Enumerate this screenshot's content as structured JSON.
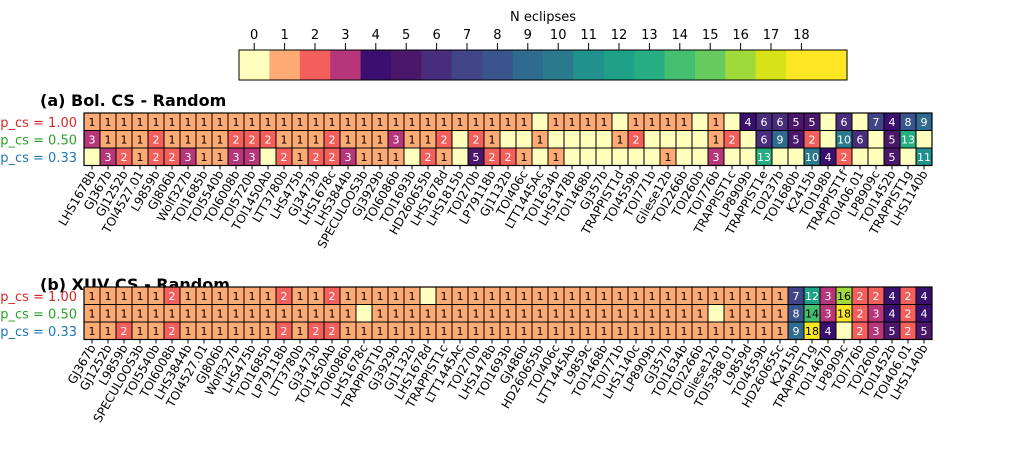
{
  "chart_data": {
    "type": "heatmap",
    "colorbar": {
      "label": "N eclipses",
      "ticks": [
        "0",
        "1",
        "2",
        "3",
        "4",
        "5",
        "6",
        "7",
        "8",
        "9",
        "10",
        "11",
        "12",
        "13",
        "14",
        "15",
        "16",
        "17",
        "18"
      ],
      "colors": [
        "#fefebd",
        "#fdaa75",
        "#f35f5b",
        "#b63679",
        "#3b0f70",
        "#4b176b",
        "#472d7b",
        "#414587",
        "#3a548c",
        "#2f6b8e",
        "#2a7a8e",
        "#21918c",
        "#1fa188",
        "#26ad81",
        "#44bf70",
        "#65cb5e",
        "#9fda3a",
        "#d8e219",
        "#fde725",
        "#fde725"
      ]
    },
    "row_labels": [
      "p_cs = 1.00",
      "p_cs = 0.50",
      "p_cs = 0.33"
    ],
    "row_label_colors": [
      "#d62728",
      "#2ca02c",
      "#1f77b4"
    ],
    "panels": [
      {
        "title": "(a) Bol. CS - Random",
        "columns": [
          "LHS1678b",
          "GJ367b",
          "GJ1252b",
          "TOI4527.01",
          "L9859b",
          "GJ806b",
          "Wolf327b",
          "TOI1685b",
          "TOI5540b",
          "TOI6008b",
          "TOI5720b",
          "TOI1450Ab",
          "LTT3780b",
          "LHS475b",
          "GJ3473b",
          "LHS1678c",
          "LHS3844b",
          "SPECULOOS3b",
          "GJ3929b",
          "TOI6086b",
          "TOI1693b",
          "HD260655b",
          "LHS1678d",
          "LHS1815b",
          "TOI270b",
          "LP79118b",
          "GJ1132b",
          "TOI406c",
          "LTT1445Ac",
          "TOI1634b",
          "LHS1478b",
          "TOI1468b",
          "GJ357b",
          "TRAPPIST1d",
          "TOI4559b",
          "TOI771b",
          "Gliese12b",
          "TOI2266b",
          "TOI260b",
          "TOI776b",
          "TRAPPIST1c",
          "LP8909b",
          "TRAPPIST1e",
          "TOI237b",
          "TOI1680b",
          "K2415b",
          "TOI198b",
          "TRAPPIST1f",
          "TOI406.01",
          "LP8909c",
          "TOI1452b",
          "TRAPPIST1g",
          "LHS1140b"
        ],
        "rows": [
          [
            1,
            1,
            1,
            1,
            1,
            1,
            1,
            1,
            1,
            1,
            1,
            1,
            1,
            1,
            1,
            1,
            1,
            1,
            1,
            1,
            1,
            1,
            1,
            1,
            1,
            1,
            1,
            1,
            0,
            1,
            1,
            1,
            1,
            0,
            1,
            1,
            1,
            1,
            0,
            1,
            0,
            4,
            6,
            6,
            5,
            5,
            0,
            6,
            0,
            7,
            4,
            8,
            9
          ],
          [
            3,
            1,
            1,
            1,
            2,
            1,
            1,
            1,
            1,
            2,
            2,
            2,
            1,
            1,
            1,
            2,
            1,
            1,
            1,
            3,
            1,
            1,
            2,
            0,
            2,
            1,
            0,
            0,
            1,
            0,
            0,
            0,
            0,
            1,
            2,
            0,
            0,
            0,
            0,
            1,
            2,
            0,
            6,
            9,
            5,
            2,
            0,
            10,
            6,
            0,
            5,
            13,
            0
          ],
          [
            0,
            3,
            2,
            1,
            2,
            2,
            3,
            1,
            1,
            3,
            3,
            0,
            2,
            1,
            2,
            2,
            3,
            1,
            1,
            1,
            0,
            2,
            1,
            0,
            5,
            2,
            2,
            1,
            0,
            1,
            0,
            0,
            0,
            0,
            0,
            0,
            1,
            0,
            0,
            3,
            0,
            0,
            13,
            0,
            0,
            10,
            4,
            2,
            0,
            0,
            5,
            0,
            11
          ]
        ]
      },
      {
        "title": "(b) XUV CS - Random",
        "columns": [
          "GJ367b",
          "GJ1252b",
          "L9859b",
          "SPECULOOS3b",
          "TOI5540b",
          "TOI6008b",
          "LHS3844b",
          "TOI4527.01",
          "GJ806b",
          "Wolf327b",
          "LHS475b",
          "TOI1685b",
          "LP79118b",
          "LTT3780b",
          "GJ3473b",
          "TOI1450Ab",
          "TOI6086b",
          "LHS1678c",
          "TRAPPIST1b",
          "GJ3929b",
          "GJ1132b",
          "LHS1678d",
          "TRAPPIST1c",
          "LTT1445Ac",
          "TOI270b",
          "LHS1478b",
          "TOI1693b",
          "GJ486b",
          "HD260655b",
          "TOI406c",
          "LTT1445Ab",
          "L9859c",
          "TOI1468b",
          "TOI771b",
          "LHS1140c",
          "LP8909b",
          "GJ357b",
          "TOI1634b",
          "TOI2266b",
          "Gliese12b",
          "TOI5388.01",
          "L9859d",
          "TOI4559b",
          "HD260655c",
          "K2415b",
          "TRAPPIST1g",
          "TOI1467b",
          "LP8909c",
          "TOI776b",
          "TOI260b",
          "TOI1452b",
          "TOI406.01",
          "LHS1140b"
        ],
        "rows": [
          [
            1,
            1,
            1,
            1,
            1,
            2,
            1,
            1,
            1,
            1,
            1,
            1,
            2,
            1,
            1,
            2,
            1,
            1,
            1,
            1,
            1,
            0,
            1,
            1,
            1,
            1,
            1,
            1,
            1,
            1,
            1,
            1,
            1,
            1,
            1,
            1,
            1,
            1,
            1,
            1,
            1,
            1,
            1,
            1,
            7,
            12,
            3,
            16,
            2,
            2,
            4,
            2,
            4
          ],
          [
            1,
            1,
            1,
            1,
            1,
            1,
            1,
            1,
            1,
            1,
            1,
            1,
            1,
            1,
            1,
            1,
            1,
            0,
            1,
            1,
            1,
            1,
            1,
            1,
            1,
            1,
            1,
            1,
            1,
            1,
            1,
            1,
            1,
            1,
            1,
            1,
            1,
            1,
            1,
            0,
            1,
            1,
            1,
            1,
            8,
            14,
            3,
            18,
            2,
            3,
            4,
            2,
            4
          ],
          [
            1,
            1,
            2,
            1,
            1,
            2,
            1,
            1,
            1,
            1,
            1,
            1,
            2,
            1,
            2,
            2,
            1,
            1,
            1,
            1,
            1,
            1,
            1,
            1,
            1,
            1,
            1,
            1,
            1,
            1,
            1,
            1,
            1,
            1,
            1,
            1,
            1,
            1,
            1,
            1,
            1,
            1,
            1,
            1,
            9,
            18,
            4,
            0,
            2,
            3,
            5,
            2,
            5
          ]
        ]
      }
    ]
  }
}
